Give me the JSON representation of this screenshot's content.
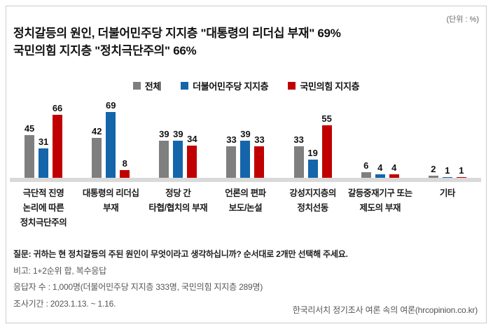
{
  "unit_label": "(단위 : %)",
  "title": {
    "line1": "정치갈등의 원인, 더불어민주당 지지층 \"대통령의 리더십 부재\" 69%",
    "line2": "국민의힘 지지층 \"정치극단주의\" 66%"
  },
  "chart_data": {
    "type": "bar",
    "title": "정치갈등의 원인",
    "unit": "%",
    "grid": false,
    "legend_position": "top-center",
    "ylim": [
      0,
      80
    ],
    "categories": [
      [
        "극단적 진영",
        "논리에 따른",
        "정치극단주의"
      ],
      [
        "대통령의 리더십",
        "부재"
      ],
      [
        "정당 간",
        "타협/협치의 부재"
      ],
      [
        "언론의 편파",
        "보도/논설"
      ],
      [
        "강성지지층의",
        "정치선동"
      ],
      [
        "갈등중재기구 또는",
        "제도의 부재"
      ],
      [
        "기타"
      ]
    ],
    "series": [
      {
        "name": "전체",
        "color": "#7f7f7f",
        "values": [
          45,
          42,
          39,
          33,
          33,
          6,
          2
        ]
      },
      {
        "name": "더불어민주당 지지층",
        "color": "#1565ab",
        "values": [
          31,
          69,
          39,
          39,
          19,
          4,
          1
        ]
      },
      {
        "name": "국민의힘 지지층",
        "color": "#c00000",
        "values": [
          66,
          8,
          34,
          33,
          55,
          4,
          1
        ]
      }
    ],
    "axis_line_color": "#d9d9d9"
  },
  "notes": {
    "question": "질문: 귀하는 현 정치갈등의 주된 원인이 무엇이라고 생각하십니까? 순서대로 2개만 선택해 주세요.",
    "remark": "비고: 1+2순위 합, 복수응답",
    "respondents": "응답자 수 : 1,000명(더불어민주당 지지층 333명, 국민의힘 지지층 289명)",
    "period": "조사기간 : 2023.1.13. ~ 1.16."
  },
  "footer": "한국리서치 정기조사 여론 속의 여론(hrcopinion.co.kr)"
}
